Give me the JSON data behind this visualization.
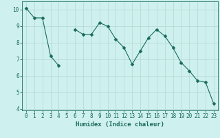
{
  "x": [
    0,
    1,
    2,
    3,
    4,
    5,
    6,
    7,
    8,
    9,
    10,
    11,
    12,
    13,
    14,
    15,
    16,
    17,
    18,
    19,
    20,
    21,
    22,
    23
  ],
  "y": [
    10.1,
    9.5,
    9.5,
    7.2,
    6.6,
    null,
    8.8,
    8.5,
    8.5,
    9.2,
    9.0,
    8.2,
    7.7,
    6.7,
    7.5,
    8.3,
    8.8,
    8.4,
    7.7,
    6.8,
    6.3,
    5.7,
    5.6,
    4.3
  ],
  "line_color": "#1a6b5a",
  "marker": "D",
  "marker_size": 2.5,
  "bg_color": "#cef0ee",
  "grid_color": "#b8dbd8",
  "xlabel": "Humidex (Indice chaleur)",
  "xlim": [
    -0.5,
    23.5
  ],
  "ylim": [
    3.9,
    10.5
  ],
  "yticks": [
    4,
    5,
    6,
    7,
    8,
    9,
    10
  ],
  "xticks": [
    0,
    1,
    2,
    3,
    4,
    5,
    6,
    7,
    8,
    9,
    10,
    11,
    12,
    13,
    14,
    15,
    16,
    17,
    18,
    19,
    20,
    21,
    22,
    23
  ],
  "tick_fontsize": 5.5,
  "xlabel_fontsize": 6.5
}
